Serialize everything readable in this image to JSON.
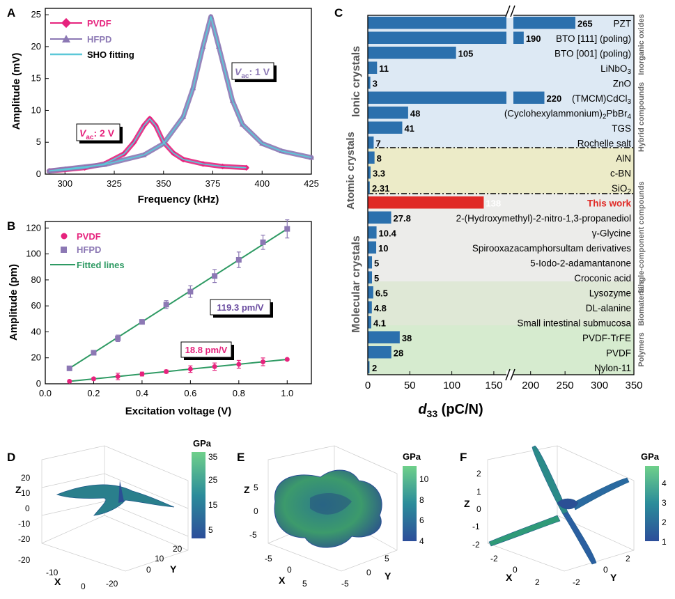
{
  "panels": {
    "A": {
      "letter": "A",
      "ylabel": "Amplitude (mV)",
      "xlabel": "Frequency (kHz)",
      "legend": [
        "PVDF",
        "HFPD",
        "SHO fitting"
      ],
      "annot_hfpd": "V",
      "annot_hfpd_sub": "ac",
      "annot_hfpd_val": ": 1 V",
      "annot_pvdf": "V",
      "annot_pvdf_sub": "ac",
      "annot_pvdf_val": ": 2 V"
    },
    "B": {
      "letter": "B",
      "ylabel": "Amplitude (pm)",
      "xlabel": "Excitation voltage (V)",
      "legend": [
        "PVDF",
        "HFPD",
        "Fitted lines"
      ],
      "slope_hfpd": "119.3 pm/V",
      "slope_pvdf": "18.8 pm/V"
    },
    "C": {
      "letter": "C",
      "xlabel": "d",
      "xlabel_sub": "33",
      "xlabel_unit": " (pC/N)",
      "group_ionic": "Ionic crystals",
      "group_atomic": "Atomic crystals",
      "group_molecular": "Molecular crystals",
      "sub_inorganic": "Inorganic oxides",
      "sub_hybrid": "Hybrid compounds",
      "sub_single": "Single-component compounds",
      "sub_bio": "Biomaterials",
      "sub_poly": "Polymers"
    },
    "D": {
      "letter": "D",
      "unit": "GPa",
      "ticks": [
        "35",
        "25",
        "15",
        "5"
      ],
      "z_ticks": [
        "20",
        "10",
        "0",
        "-10",
        "-20"
      ],
      "x_ticks": [
        "-20",
        "-10",
        "0"
      ],
      "y_ticks": [
        "20",
        "10",
        "0",
        "-20"
      ],
      "axes": [
        "Z",
        "X",
        "Y"
      ]
    },
    "E": {
      "letter": "E",
      "unit": "GPa",
      "ticks": [
        "10",
        "8",
        "6",
        "4"
      ],
      "z_ticks": [
        "5",
        "0",
        "-5"
      ],
      "x_ticks": [
        "-5",
        "0",
        "5"
      ],
      "y_ticks": [
        "5",
        "0",
        "-5"
      ],
      "axes": [
        "Z",
        "X",
        "Y"
      ]
    },
    "F": {
      "letter": "F",
      "unit": "GPa",
      "ticks": [
        "4",
        "3",
        "2",
        "1"
      ],
      "z_ticks": [
        "2",
        "1",
        "0",
        "-1",
        "-2"
      ],
      "x_ticks": [
        "-2",
        "0",
        "2"
      ],
      "y_ticks": [
        "2",
        "0",
        "-2"
      ],
      "axes": [
        "Z",
        "X",
        "Y"
      ]
    }
  },
  "colors": {
    "pvdf": "#e6237d",
    "hfpd": "#8c78b4",
    "sho": "#5cc8d8",
    "fit": "#2e9a63",
    "bar": "#2b70ad",
    "highlight": "#e02a26"
  },
  "chart_data": [
    {
      "panel": "A",
      "type": "line",
      "xlim": [
        290,
        425
      ],
      "ylim": [
        0,
        26
      ],
      "xticks": [
        300,
        325,
        350,
        375,
        400,
        425
      ],
      "yticks": [
        0,
        5,
        10,
        15,
        20,
        25
      ],
      "series": [
        {
          "name": "PVDF",
          "x": [
            292,
            300,
            310,
            320,
            330,
            335,
            340,
            343,
            346,
            350,
            355,
            360,
            370,
            380,
            392
          ],
          "y": [
            0.5,
            0.7,
            1.0,
            1.6,
            3.2,
            5.0,
            7.6,
            8.7,
            7.6,
            5.0,
            3.3,
            2.3,
            1.6,
            1.2,
            1.0
          ]
        },
        {
          "name": "HFPD",
          "x": [
            292,
            300,
            320,
            340,
            350,
            360,
            365,
            370,
            374,
            378,
            385,
            390,
            400,
            410,
            425
          ],
          "y": [
            0.5,
            0.8,
            1.5,
            3.0,
            4.8,
            9.0,
            13.5,
            20.0,
            24.7,
            20.0,
            11.5,
            7.8,
            4.8,
            3.6,
            2.6
          ]
        },
        {
          "name": "SHO fitting",
          "x": [
            292,
            300,
            320,
            340,
            350,
            360,
            365,
            370,
            374,
            378,
            385,
            390,
            400,
            410,
            425
          ],
          "y": [
            0.5,
            0.8,
            1.5,
            3.0,
            4.8,
            9.0,
            13.5,
            20.0,
            24.7,
            20.0,
            11.5,
            7.8,
            4.8,
            3.6,
            2.6
          ]
        }
      ]
    },
    {
      "panel": "B",
      "type": "scatter",
      "xlim": [
        0,
        1.1
      ],
      "ylim": [
        0,
        125
      ],
      "xticks": [
        0.0,
        0.2,
        0.4,
        0.6,
        0.8,
        1.0
      ],
      "yticks": [
        0,
        20,
        40,
        60,
        80,
        100,
        120
      ],
      "series": [
        {
          "name": "PVDF",
          "x": [
            0.1,
            0.2,
            0.3,
            0.4,
            0.5,
            0.6,
            0.7,
            0.8,
            0.9,
            1.0
          ],
          "y": [
            1.9,
            3.8,
            5.6,
            7.5,
            9.4,
            11.3,
            13.2,
            15.0,
            16.9,
            18.8
          ],
          "err": [
            0.8,
            1.0,
            2.5,
            1.5,
            1.2,
            2.5,
            2.8,
            3.0,
            3.0,
            0.6
          ]
        },
        {
          "name": "HFPD",
          "x": [
            0.1,
            0.2,
            0.3,
            0.4,
            0.5,
            0.6,
            0.7,
            0.8,
            0.9,
            1.0
          ],
          "y": [
            11.9,
            23.9,
            35.0,
            47.7,
            61.0,
            71.0,
            83.0,
            95.5,
            109.0,
            119.3
          ],
          "err": [
            1.5,
            1.5,
            2.5,
            1.5,
            3.0,
            4.5,
            5.0,
            6.0,
            5.5,
            7.0
          ]
        },
        {
          "name": "Fitted lines",
          "slopes": [
            18.8,
            119.3
          ]
        }
      ]
    },
    {
      "panel": "C",
      "type": "bar",
      "xlim": [
        0,
        350
      ],
      "xticks": [
        0,
        50,
        100,
        150,
        200,
        250,
        300,
        350
      ],
      "axis_break": [
        165,
        175
      ],
      "categories": [
        "PZT",
        "BTO [111] (poling)",
        "BTO [001] (poling)",
        "LiNbO3",
        "ZnO",
        "(TMCM)CdCl3",
        "(Cyclohexylammonium)2PbBr4",
        "TGS",
        "Rochelle salt",
        "AlN",
        "c-BN",
        "SiO2",
        "This work",
        "2-(Hydroxymethyl)-2-nitro-1,3-propanediol",
        "γ-Glycine",
        "Spirooxazacamphorsultam derivatives",
        "5-Iodo-2-adamantanone",
        "Croconic acid",
        "Lysozyme",
        "DL-alanine",
        "Small intestinal submucosa",
        "PVDF-TrFE",
        "PVDF",
        "Nylon-11"
      ],
      "values": [
        265,
        190,
        105,
        11,
        3,
        220,
        48,
        41,
        7,
        8,
        3.3,
        2.31,
        138,
        27.8,
        10.4,
        10,
        5,
        5,
        6.5,
        4.8,
        4.1,
        38,
        28,
        2
      ],
      "value_labels": [
        "265",
        "190",
        "105",
        "11",
        "3",
        "220",
        "48",
        "41",
        "7",
        "8",
        "3.3",
        "2.31",
        "138",
        "27.8",
        "10.4",
        "10",
        "5",
        "5",
        "6.5",
        "4.8",
        "4.1",
        "38",
        "28",
        "2"
      ]
    }
  ]
}
